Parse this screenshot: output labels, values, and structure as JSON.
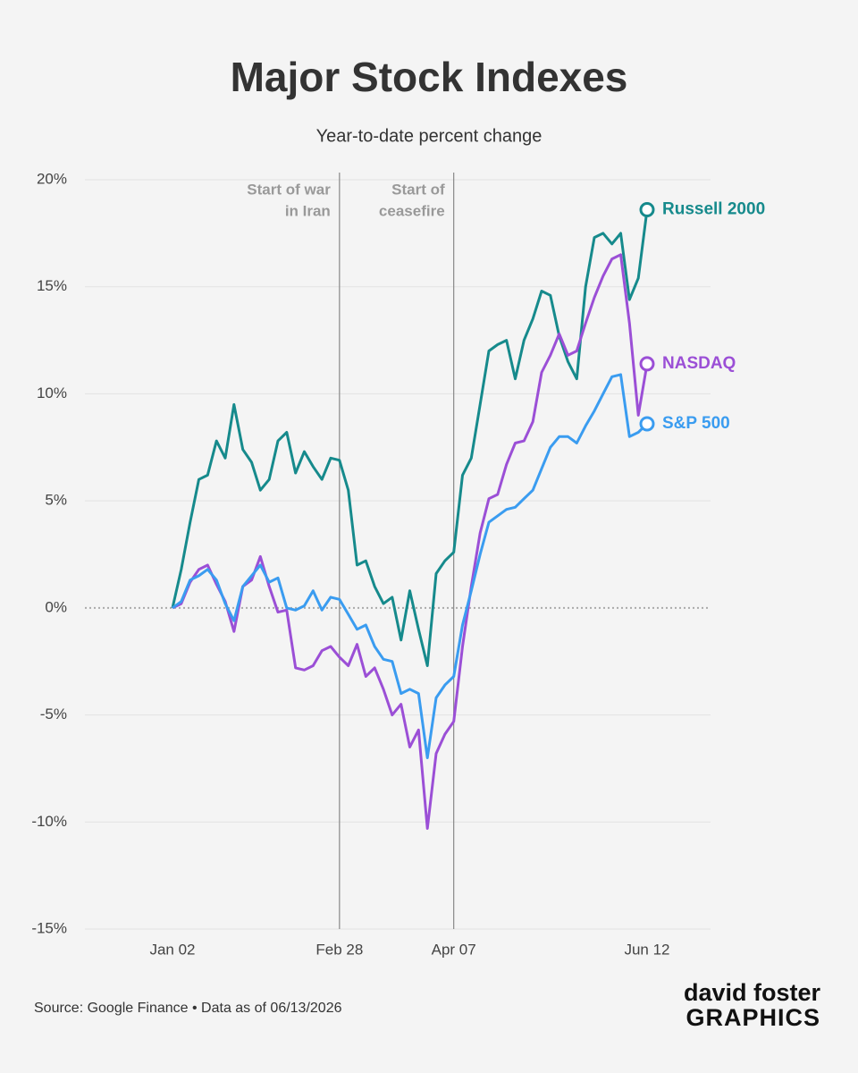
{
  "chart_data": {
    "type": "line",
    "title": "Major Stock Indexes",
    "subtitle": "Year-to-date percent change",
    "source": "Source: Google Finance • Data as of 06/13/2026",
    "branding": [
      "david foster",
      "GRAPHICS"
    ],
    "categories": [
      "Jan 02",
      null,
      null,
      null,
      null,
      null,
      null,
      null,
      null,
      null,
      null,
      null,
      null,
      null,
      null,
      null,
      null,
      null,
      null,
      "Feb 28",
      null,
      null,
      null,
      null,
      null,
      null,
      null,
      null,
      null,
      null,
      null,
      null,
      "Apr 07",
      null,
      null,
      null,
      null,
      null,
      null,
      null,
      null,
      null,
      null,
      null,
      null,
      null,
      null,
      null,
      null,
      null,
      null,
      null,
      null,
      null,
      "Jun 12"
    ],
    "series": [
      {
        "name": "Russell 2000",
        "color": "#168a8c",
        "values": [
          0,
          1.8,
          4,
          6,
          6.2,
          7.8,
          7,
          9.5,
          7.4,
          6.8,
          5.5,
          6,
          7.8,
          8.2,
          6.3,
          7.3,
          6.6,
          6,
          7,
          6.9,
          5.5,
          2,
          2.2,
          1,
          0.2,
          0.5,
          -1.5,
          0.8,
          -1,
          -2.7,
          1.6,
          2.2,
          2.6,
          6.2,
          7,
          9.5,
          12,
          12.3,
          12.5,
          10.7,
          12.5,
          13.5,
          14.8,
          14.6,
          12.7,
          11.5,
          10.7,
          15,
          17.3,
          17.5,
          17,
          17.5,
          14.4,
          15.4,
          18.6
        ]
      },
      {
        "name": "NASDAQ",
        "color": "#9b4fd6",
        "values": [
          0,
          0.2,
          1.2,
          1.8,
          2,
          1.1,
          0.3,
          -1.1,
          1,
          1.3,
          2.4,
          1,
          -0.2,
          -0.1,
          -2.8,
          -2.9,
          -2.7,
          -2,
          -1.8,
          -2.3,
          -2.7,
          -1.7,
          -3.2,
          -2.8,
          -3.8,
          -5,
          -4.5,
          -6.5,
          -5.7,
          -10.3,
          -6.8,
          -5.9,
          -5.3,
          -1.8,
          1,
          3.5,
          5.1,
          5.3,
          6.7,
          7.7,
          7.8,
          8.7,
          11,
          11.8,
          12.8,
          11.8,
          12,
          13.3,
          14.5,
          15.5,
          16.3,
          16.5,
          13.3,
          9,
          11.4
        ]
      },
      {
        "name": "S&P 500",
        "color": "#3a9cf0",
        "values": [
          0,
          0.3,
          1.3,
          1.5,
          1.8,
          1.3,
          0.2,
          -0.6,
          1,
          1.5,
          2,
          1.2,
          1.4,
          0,
          -0.1,
          0.1,
          0.8,
          -0.1,
          0.5,
          0.4,
          -0.3,
          -1,
          -0.8,
          -1.8,
          -2.4,
          -2.5,
          -4,
          -3.8,
          -4,
          -7,
          -4.2,
          -3.6,
          -3.2,
          -0.8,
          0.8,
          2.5,
          4,
          4.3,
          4.6,
          4.7,
          5.1,
          5.5,
          6.5,
          7.5,
          8,
          8,
          7.7,
          8.5,
          9.2,
          10,
          10.8,
          10.9,
          8,
          8.2,
          8.6
        ]
      }
    ],
    "annotations": [
      {
        "category": "Feb 28",
        "lines": [
          "Start of war",
          "in Iran"
        ]
      },
      {
        "category": "Apr 07",
        "lines": [
          "Start of",
          "ceasefire"
        ]
      }
    ],
    "ylim": [
      -15,
      20
    ],
    "yticks": [
      {
        "value": -15,
        "label": "-15%"
      },
      {
        "value": -10,
        "label": "-10%"
      },
      {
        "value": -5,
        "label": "-5%"
      },
      {
        "value": 0,
        "label": "0%"
      },
      {
        "value": 5,
        "label": "5%"
      },
      {
        "value": 10,
        "label": "10%"
      },
      {
        "value": 15,
        "label": "15%"
      },
      {
        "value": 20,
        "label": "20%"
      }
    ],
    "grid": true
  }
}
